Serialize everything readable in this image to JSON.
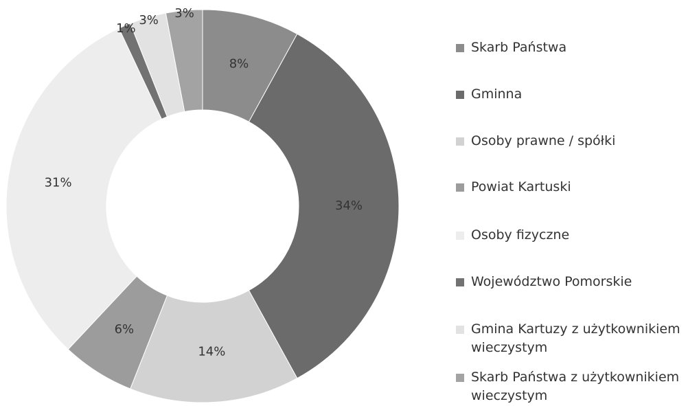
{
  "chart_data": {
    "type": "donut",
    "categories": [
      "Skarb Państwa",
      "Gminna",
      "Osoby prawne / spółki",
      "Powiat Kartuski",
      "Osoby fizyczne",
      "Województwo Pomorskie",
      "Gmina Kartuzy z użytkownikiem wieczystym",
      "Skarb Państwa z użytkownikiem wieczystym"
    ],
    "values": [
      8,
      34,
      14,
      6,
      31,
      1,
      3,
      3
    ],
    "value_labels": [
      "8%",
      "34%",
      "14%",
      "6%",
      "31%",
      "1%",
      "3%",
      "3%"
    ],
    "colors": [
      "#8c8c8c",
      "#6b6b6b",
      "#d2d2d2",
      "#9c9c9c",
      "#ededed",
      "#727272",
      "#e2e2e2",
      "#a3a3a3"
    ],
    "legend": "right"
  }
}
